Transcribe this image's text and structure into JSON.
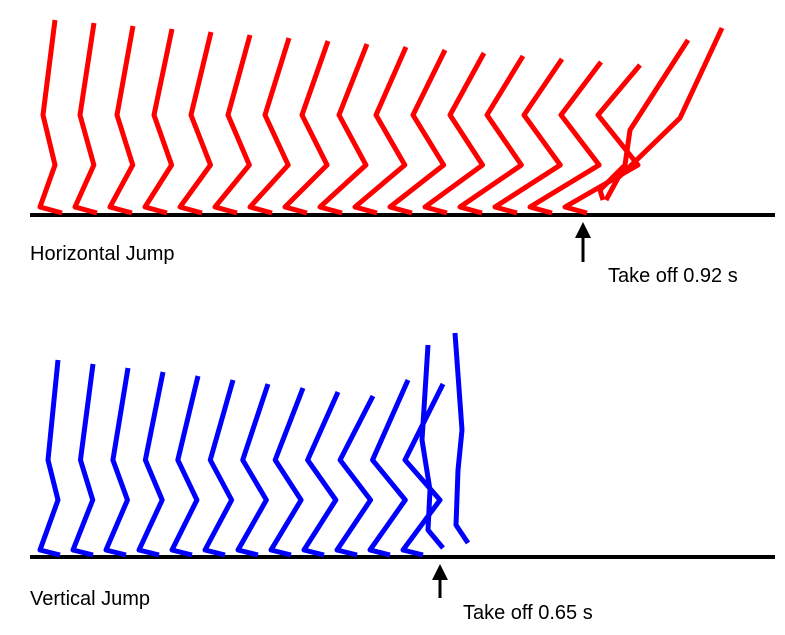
{
  "panels": [
    {
      "label": "Horizontal Jump",
      "takeoff": "Take off 0.92 s"
    },
    {
      "label": "Vertical Jump",
      "takeoff": "Take off 0.65 s"
    }
  ]
}
